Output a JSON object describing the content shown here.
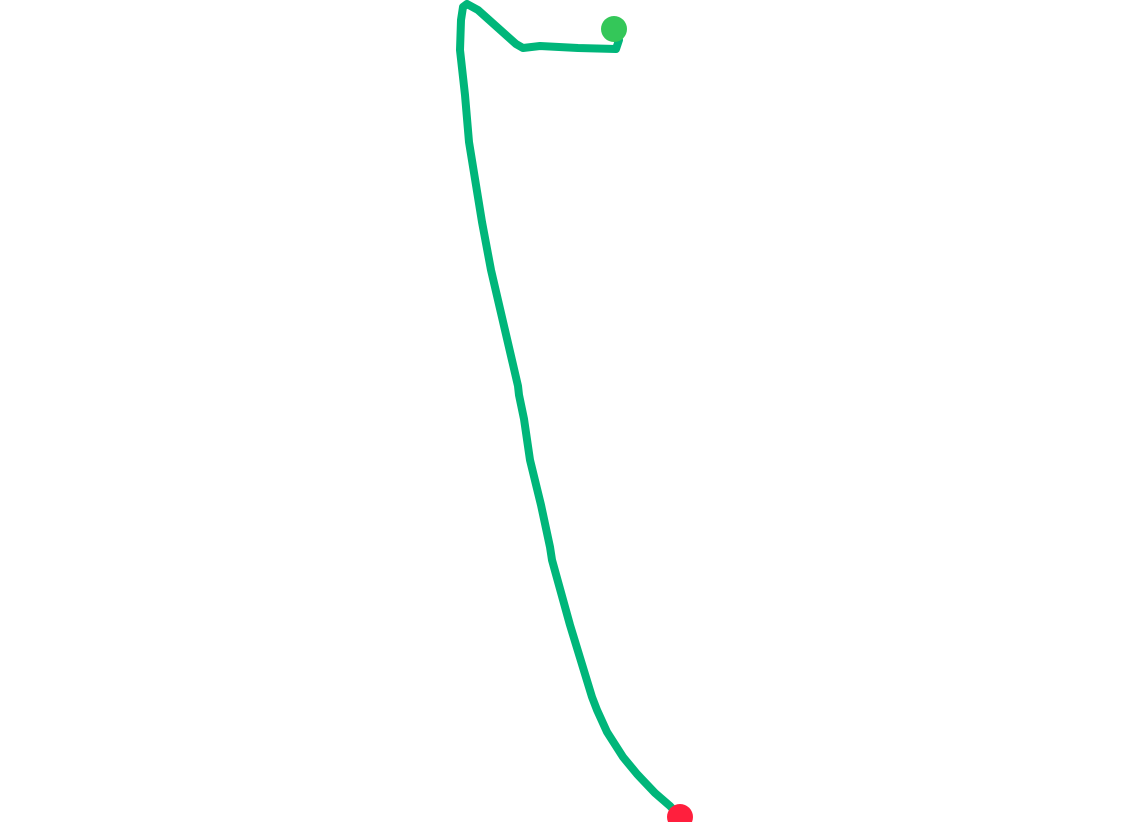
{
  "route": {
    "line_color": "#00b67a",
    "start_marker_color": "#34c759",
    "end_marker_color": "#ff1f3d"
  }
}
